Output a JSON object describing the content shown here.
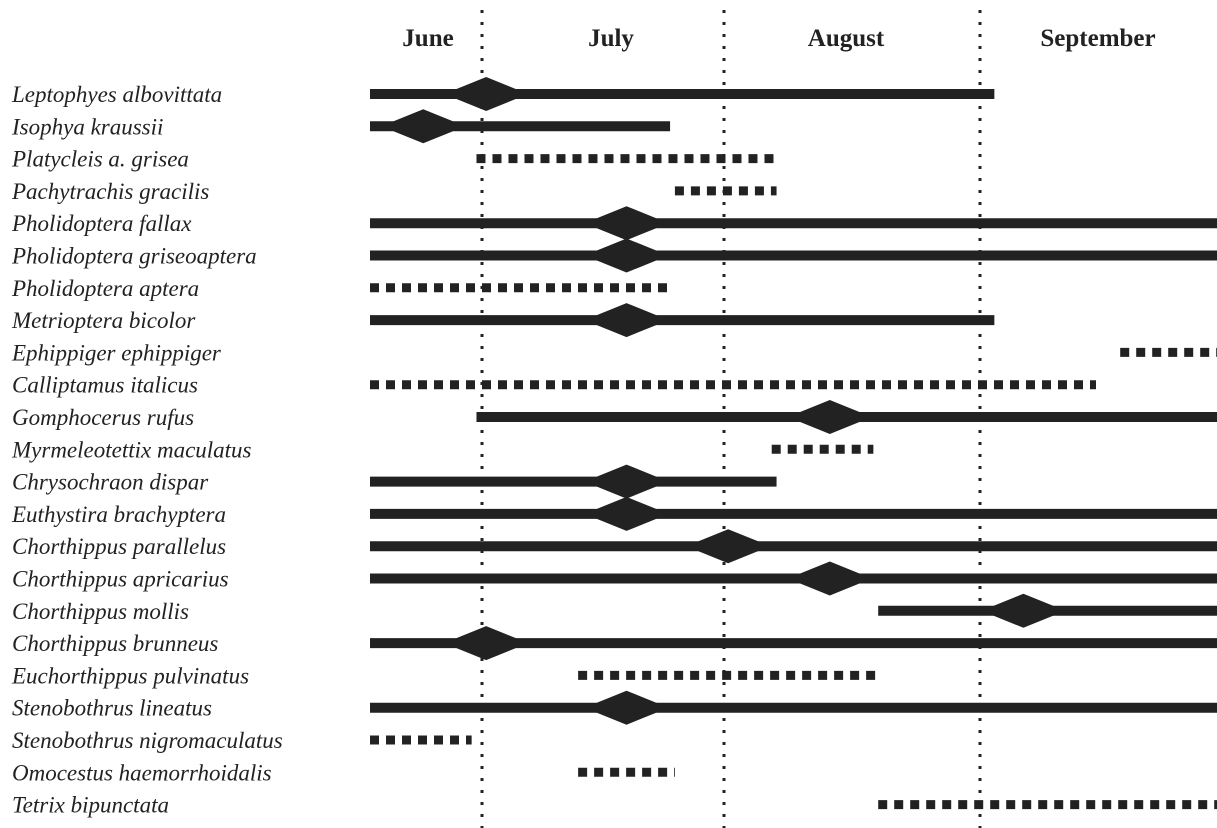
{
  "chart_data": {
    "type": "timeline",
    "months": [
      "June",
      "July",
      "August",
      "September"
    ],
    "x_axis": {
      "min": 0,
      "max": 4,
      "unit": "months from start of June"
    },
    "legend": "none",
    "grid": "month boundaries dotted",
    "species": [
      {
        "name": "Leptophyes albovittata",
        "start": 0.0,
        "end": 2.58,
        "style": "solid",
        "peak": 0.48
      },
      {
        "name": "Isophya kraussii",
        "start": 0.0,
        "end": 1.24,
        "style": "solid",
        "peak": 0.22
      },
      {
        "name": "Platycleis a. grisea",
        "start": 0.44,
        "end": 1.68,
        "style": "dashed",
        "peak": null
      },
      {
        "name": "Pachytrachis gracilis",
        "start": 1.26,
        "end": 1.68,
        "style": "dashed",
        "peak": null
      },
      {
        "name": "Pholidoptera fallax",
        "start": 0.0,
        "end": 3.55,
        "style": "solid",
        "peak": 1.06
      },
      {
        "name": "Pholidoptera griseoaptera",
        "start": 0.0,
        "end": 3.55,
        "style": "solid",
        "peak": 1.06
      },
      {
        "name": "Pholidoptera aptera",
        "start": 0.0,
        "end": 1.24,
        "style": "dashed",
        "peak": null
      },
      {
        "name": "Metrioptera bicolor",
        "start": 0.0,
        "end": 2.58,
        "style": "solid",
        "peak": 1.06
      },
      {
        "name": "Ephippiger ephippiger",
        "start": 3.1,
        "end": 3.55,
        "style": "dashed",
        "peak": null
      },
      {
        "name": "Calliptamus italicus",
        "start": 0.0,
        "end": 3.0,
        "style": "dashed",
        "peak": null
      },
      {
        "name": "Gomphocerus rufus",
        "start": 0.44,
        "end": 3.55,
        "style": "solid",
        "peak": 1.9
      },
      {
        "name": "Myrmeleotettix maculatus",
        "start": 1.66,
        "end": 2.08,
        "style": "dashed",
        "peak": null
      },
      {
        "name": "Chrysochraon dispar",
        "start": 0.0,
        "end": 1.68,
        "style": "solid",
        "peak": 1.06
      },
      {
        "name": "Euthystira brachyptera",
        "start": 0.0,
        "end": 3.55,
        "style": "solid",
        "peak": 1.06
      },
      {
        "name": "Chorthippus parallelus",
        "start": 0.0,
        "end": 3.55,
        "style": "solid",
        "peak": 1.48
      },
      {
        "name": "Chorthippus apricarius",
        "start": 0.0,
        "end": 3.55,
        "style": "solid",
        "peak": 1.9
      },
      {
        "name": "Chorthippus mollis",
        "start": 2.1,
        "end": 3.55,
        "style": "solid",
        "peak": 2.7
      },
      {
        "name": "Chorthippus brunneus",
        "start": 0.0,
        "end": 3.55,
        "style": "solid",
        "peak": 0.48
      },
      {
        "name": "Euchorthippus pulvinatus",
        "start": 0.86,
        "end": 2.1,
        "style": "dashed",
        "peak": null
      },
      {
        "name": "Stenobothrus lineatus",
        "start": 0.0,
        "end": 3.55,
        "style": "solid",
        "peak": 1.06
      },
      {
        "name": "Stenobothrus nigromaculatus",
        "start": 0.0,
        "end": 0.42,
        "style": "dashed",
        "peak": null
      },
      {
        "name": "Omocestus haemorrhoidalis",
        "start": 0.86,
        "end": 1.26,
        "style": "dashed",
        "peak": null
      },
      {
        "name": "Tetrix bipunctata",
        "start": 2.1,
        "end": 3.55,
        "style": "dashed",
        "peak": null
      }
    ]
  }
}
